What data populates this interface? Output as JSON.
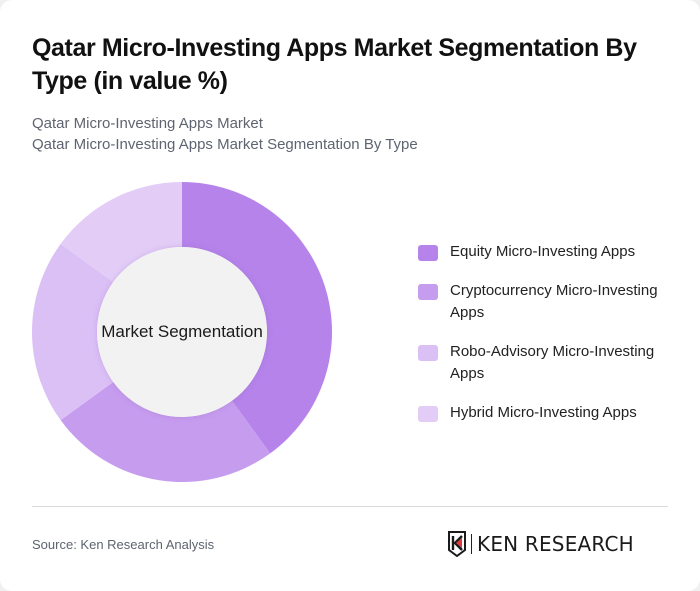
{
  "header": {
    "title": "Qatar Micro-Investing Apps Market Segmentation By Type (in value %)",
    "subtitle_line1": "Qatar Micro-Investing Apps Market",
    "subtitle_line2": "Qatar Micro-Investing Apps Market Segmentation By Type"
  },
  "chart": {
    "center_label": "Market Segmentation",
    "center_fill": "#f2f2f2"
  },
  "legend": [
    {
      "label": "Equity Micro-Investing Apps",
      "color": "#b583ea"
    },
    {
      "label": "Cryptocurrency Micro-Investing Apps",
      "color": "#c69cee"
    },
    {
      "label": "Robo-Advisory Micro-Investing Apps",
      "color": "#dbc0f6"
    },
    {
      "label": "Hybrid Micro-Investing Apps",
      "color": "#e3cdf7"
    }
  ],
  "footer": {
    "source": "Source: Ken Research Analysis",
    "logo_text": "KEN RESEARCH"
  },
  "chart_data": {
    "type": "pie",
    "variant": "donut",
    "title": "Qatar Micro-Investing Apps Market Segmentation By Type (in value %)",
    "subtitle": "Qatar Micro-Investing Apps Market Segmentation By Type",
    "center_text": "Market Segmentation",
    "categories": [
      "Equity Micro-Investing Apps",
      "Cryptocurrency Micro-Investing Apps",
      "Robo-Advisory Micro-Investing Apps",
      "Hybrid Micro-Investing Apps"
    ],
    "values": [
      40,
      25,
      20,
      15
    ],
    "unit": "%",
    "colors": [
      "#b583ea",
      "#c69cee",
      "#dbc0f6",
      "#e3cdf7"
    ],
    "legend_position": "right",
    "start_angle_deg": 0,
    "direction": "clockwise"
  }
}
